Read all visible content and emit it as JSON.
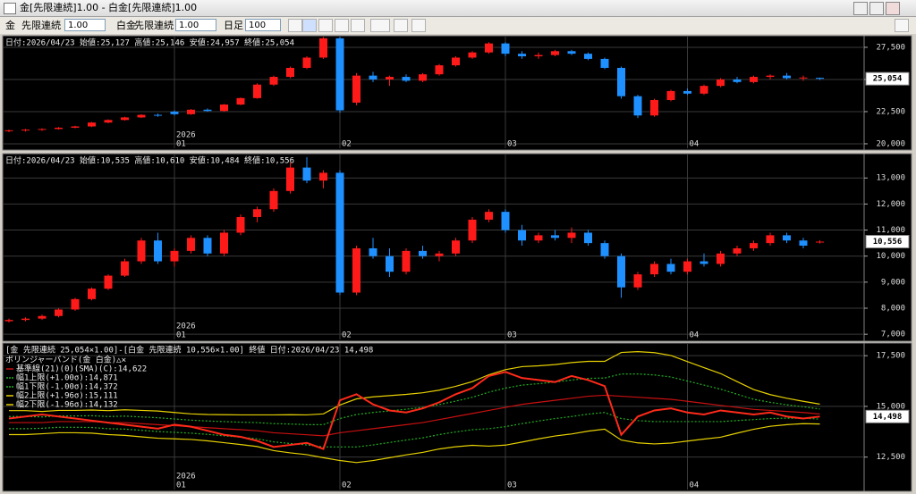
{
  "window": {
    "title": "金[先限連続]1.00 - 白金[先限連続]1.00"
  },
  "toolbar": {
    "symbol1": "金",
    "contract1": "先限連続",
    "mult1": "1.00",
    "symbol2": "白金",
    "contract2": "先限連続",
    "mult2": "1.00",
    "period": "日足",
    "bars": "100"
  },
  "chart_data": [
    {
      "type": "candlestick",
      "header": "日付:2026/04/23 始値:25,127 高値:25,146 安値:24,957 終値:25,054",
      "categories": [
        null,
        null,
        null,
        null,
        null,
        null,
        null,
        null,
        null,
        null,
        "01",
        null,
        null,
        null,
        null,
        null,
        null,
        null,
        null,
        null,
        "02",
        null,
        null,
        null,
        null,
        null,
        null,
        null,
        null,
        null,
        "03",
        null,
        null,
        null,
        null,
        null,
        null,
        null,
        null,
        null,
        null,
        "04",
        null,
        null,
        null,
        null,
        null,
        null,
        null,
        null
      ],
      "year_label": "2026",
      "ohlc": [
        [
          21000,
          21100,
          20900,
          21050
        ],
        [
          21050,
          21150,
          20950,
          21100
        ],
        [
          21100,
          21200,
          21000,
          21150
        ],
        [
          21150,
          21300,
          21100,
          21250
        ],
        [
          21250,
          21400,
          21200,
          21350
        ],
        [
          21350,
          21700,
          21300,
          21650
        ],
        [
          21650,
          21900,
          21600,
          21850
        ],
        [
          21850,
          22100,
          21800,
          22050
        ],
        [
          22050,
          22300,
          22000,
          22250
        ],
        [
          22250,
          22350,
          22100,
          22200
        ],
        [
          22500,
          22600,
          22200,
          22300
        ],
        [
          22300,
          22700,
          22250,
          22650
        ],
        [
          22650,
          22750,
          22500,
          22550
        ],
        [
          22550,
          23100,
          22500,
          23050
        ],
        [
          23050,
          23600,
          23000,
          23550
        ],
        [
          23550,
          24700,
          23500,
          24600
        ],
        [
          24600,
          25300,
          24500,
          25200
        ],
        [
          25200,
          26000,
          25100,
          25900
        ],
        [
          25900,
          26800,
          25800,
          26700
        ],
        [
          26700,
          28300,
          26600,
          28200
        ],
        [
          28200,
          28300,
          22400,
          22600
        ],
        [
          23200,
          25500,
          23000,
          25300
        ],
        [
          25300,
          25600,
          24800,
          25000
        ],
        [
          25000,
          25300,
          24500,
          25200
        ],
        [
          25200,
          25400,
          24800,
          24900
        ],
        [
          24900,
          25500,
          24800,
          25400
        ],
        [
          25400,
          26200,
          25300,
          26100
        ],
        [
          26100,
          26800,
          26000,
          26700
        ],
        [
          26700,
          27200,
          26600,
          27100
        ],
        [
          27100,
          27900,
          27000,
          27800
        ],
        [
          27800,
          27900,
          26800,
          27000
        ],
        [
          27000,
          27200,
          26600,
          26800
        ],
        [
          26800,
          27100,
          26600,
          26900
        ],
        [
          26900,
          27300,
          26800,
          27200
        ],
        [
          27200,
          27300,
          26900,
          27000
        ],
        [
          27000,
          27100,
          26500,
          26600
        ],
        [
          26600,
          26700,
          25800,
          25900
        ],
        [
          25900,
          26000,
          23500,
          23700
        ],
        [
          23700,
          23800,
          22000,
          22200
        ],
        [
          22200,
          23500,
          22100,
          23400
        ],
        [
          23400,
          24200,
          23300,
          24100
        ],
        [
          24100,
          24300,
          23800,
          23900
        ],
        [
          23900,
          24600,
          23800,
          24500
        ],
        [
          24500,
          25100,
          24400,
          25000
        ],
        [
          25000,
          25200,
          24700,
          24800
        ],
        [
          24800,
          25300,
          24700,
          25200
        ],
        [
          25200,
          25400,
          25000,
          25300
        ],
        [
          25300,
          25500,
          25000,
          25100
        ],
        [
          25100,
          25300,
          24900,
          25150
        ],
        [
          25127,
          25146,
          24957,
          25054
        ]
      ],
      "up_color": "#ff1a1a",
      "down_color": "#1e90ff",
      "ylim": [
        19650,
        28330
      ],
      "yticks": [
        {
          "value": 20000,
          "label": "20,000"
        },
        {
          "value": 22500,
          "label": "22,500"
        },
        {
          "value": 25000,
          "label": "25,000"
        },
        {
          "value": 27500,
          "label": "27,500"
        }
      ],
      "grid": true,
      "last_label": "25,054"
    },
    {
      "type": "candlestick",
      "header": "日付:2026/04/23 始値:10,535 高値:10,610 安値:10,484 終値:10,556",
      "categories": [
        null,
        null,
        null,
        null,
        null,
        null,
        null,
        null,
        null,
        null,
        "01",
        null,
        null,
        null,
        null,
        null,
        null,
        null,
        null,
        null,
        "02",
        null,
        null,
        null,
        null,
        null,
        null,
        null,
        null,
        null,
        "03",
        null,
        null,
        null,
        null,
        null,
        null,
        null,
        null,
        null,
        null,
        "04",
        null,
        null,
        null,
        null,
        null,
        null,
        null,
        null
      ],
      "year_label": "2026",
      "ohlc": [
        [
          7500,
          7600,
          7450,
          7550
        ],
        [
          7550,
          7650,
          7500,
          7600
        ],
        [
          7600,
          7750,
          7550,
          7700
        ],
        [
          7700,
          8000,
          7650,
          7950
        ],
        [
          7950,
          8400,
          7900,
          8350
        ],
        [
          8350,
          8800,
          8300,
          8750
        ],
        [
          8750,
          9300,
          8700,
          9250
        ],
        [
          9250,
          9900,
          9200,
          9800
        ],
        [
          9800,
          10700,
          9700,
          10600
        ],
        [
          10600,
          10900,
          9700,
          9800
        ],
        [
          9800,
          10300,
          9600,
          10200
        ],
        [
          10200,
          10800,
          10100,
          10700
        ],
        [
          10700,
          10800,
          10000,
          10100
        ],
        [
          10100,
          11000,
          10000,
          10900
        ],
        [
          10900,
          11600,
          10800,
          11500
        ],
        [
          11500,
          11900,
          11300,
          11800
        ],
        [
          11800,
          12600,
          11700,
          12500
        ],
        [
          12500,
          13600,
          12400,
          13400
        ],
        [
          13400,
          13800,
          12800,
          12900
        ],
        [
          12900,
          13300,
          12600,
          13200
        ],
        [
          13200,
          13300,
          8500,
          8600
        ],
        [
          8600,
          10400,
          8500,
          10300
        ],
        [
          10300,
          10700,
          9900,
          10000
        ],
        [
          10000,
          10300,
          9200,
          9400
        ],
        [
          9400,
          10300,
          9300,
          10200
        ],
        [
          10200,
          10400,
          9900,
          10000
        ],
        [
          10000,
          10200,
          9800,
          10100
        ],
        [
          10100,
          10700,
          10000,
          10600
        ],
        [
          10600,
          11500,
          10500,
          11400
        ],
        [
          11400,
          11800,
          11300,
          11700
        ],
        [
          11700,
          11800,
          10900,
          11000
        ],
        [
          11000,
          11200,
          10400,
          10600
        ],
        [
          10600,
          10900,
          10500,
          10800
        ],
        [
          10800,
          11000,
          10600,
          10700
        ],
        [
          10700,
          11100,
          10500,
          10900
        ],
        [
          10900,
          11000,
          10400,
          10500
        ],
        [
          10500,
          10600,
          9900,
          10000
        ],
        [
          10000,
          10100,
          8400,
          8800
        ],
        [
          8800,
          9400,
          8700,
          9300
        ],
        [
          9300,
          9800,
          9200,
          9700
        ],
        [
          9700,
          9900,
          9300,
          9400
        ],
        [
          9400,
          9900,
          9300,
          9800
        ],
        [
          9800,
          10100,
          9600,
          9700
        ],
        [
          9700,
          10200,
          9600,
          10100
        ],
        [
          10100,
          10400,
          10000,
          10300
        ],
        [
          10300,
          10600,
          10200,
          10500
        ],
        [
          10500,
          10900,
          10400,
          10800
        ],
        [
          10800,
          10900,
          10500,
          10600
        ],
        [
          10600,
          10700,
          10300,
          10400
        ],
        [
          10535,
          10610,
          10484,
          10556
        ]
      ],
      "up_color": "#ff1a1a",
      "down_color": "#1e90ff",
      "ylim": [
        6800,
        13900
      ],
      "yticks": [
        {
          "value": 7000,
          "label": "7,000"
        },
        {
          "value": 8000,
          "label": "8,000"
        },
        {
          "value": 9000,
          "label": "9,000"
        },
        {
          "value": 10000,
          "label": "10,000"
        },
        {
          "value": 11000,
          "label": "11,000"
        },
        {
          "value": 12000,
          "label": "12,000"
        },
        {
          "value": 13000,
          "label": "13,000"
        }
      ],
      "grid": true,
      "last_label": "10,556"
    },
    {
      "type": "line",
      "header": "[金 先限連続 25,054×1.00]-[白金 先限連続 10,556×1.00] 終値 日付:2026/04/23 14,498",
      "legend_title": "ボリンジャーバンド(金 白金)△✕",
      "categories": [
        null,
        null,
        null,
        null,
        null,
        null,
        null,
        null,
        null,
        null,
        "01",
        null,
        null,
        null,
        null,
        null,
        null,
        null,
        null,
        null,
        "02",
        null,
        null,
        null,
        null,
        null,
        null,
        null,
        null,
        null,
        "03",
        null,
        null,
        null,
        null,
        null,
        null,
        null,
        null,
        null,
        null,
        "04",
        null,
        null,
        null,
        null,
        null,
        null,
        null,
        null
      ],
      "year_label": "2026",
      "color": "#ff2a1a",
      "values": [
        14400,
        14500,
        14600,
        14500,
        14400,
        14300,
        14200,
        14100,
        14000,
        13900,
        14100,
        14000,
        13800,
        13600,
        13500,
        13300,
        13000,
        13100,
        13200,
        12900,
        15300,
        15600,
        15100,
        14800,
        14700,
        14900,
        15200,
        15600,
        15900,
        16500,
        16700,
        16400,
        16300,
        16200,
        16500,
        16300,
        16000,
        13600,
        14500,
        14800,
        14900,
        14700,
        14600,
        14800,
        14700,
        14600,
        14700,
        14500,
        14400,
        14498
      ],
      "series": [
        {
          "name": "基準線(21)(0)(SMA)(C):14,622",
          "color": "#c81010",
          "dash": false,
          "values": [
            14200,
            14200,
            14200,
            14250,
            14250,
            14250,
            14200,
            14200,
            14150,
            14100,
            14050,
            14000,
            13950,
            13900,
            13850,
            13800,
            13700,
            13650,
            13600,
            13550,
            13700,
            13800,
            13900,
            14000,
            14100,
            14200,
            14350,
            14500,
            14650,
            14800,
            14950,
            15100,
            15200,
            15300,
            15400,
            15500,
            15550,
            15500,
            15450,
            15400,
            15350,
            15250,
            15150,
            15050,
            14950,
            14850,
            14800,
            14750,
            14700,
            14622
          ]
        },
        {
          "name": "幅1上限(+1.00σ):14,871",
          "color": "#22b022",
          "dash": true,
          "values": [
            14500,
            14500,
            14480,
            14530,
            14530,
            14540,
            14500,
            14520,
            14480,
            14440,
            14380,
            14320,
            14280,
            14250,
            14220,
            14200,
            14150,
            14130,
            14100,
            14100,
            14400,
            14600,
            14700,
            14780,
            14860,
            14950,
            15090,
            15260,
            15450,
            15700,
            15900,
            16050,
            16120,
            16200,
            16300,
            16380,
            16400,
            16600,
            16600,
            16550,
            16450,
            16250,
            16050,
            15850,
            15600,
            15350,
            15200,
            15080,
            14980,
            14871
          ]
        },
        {
          "name": "幅1下限(-1.00σ):14,372",
          "color": "#22b022",
          "dash": true,
          "values": [
            13900,
            13900,
            13920,
            13970,
            13970,
            13960,
            13900,
            13880,
            13820,
            13760,
            13720,
            13680,
            13620,
            13550,
            13480,
            13400,
            13250,
            13170,
            13100,
            13000,
            13000,
            13000,
            13100,
            13220,
            13340,
            13450,
            13610,
            13740,
            13850,
            13900,
            14000,
            14150,
            14280,
            14400,
            14500,
            14620,
            14700,
            14400,
            14300,
            14250,
            14250,
            14250,
            14250,
            14250,
            14300,
            14350,
            14400,
            14420,
            14420,
            14372
          ]
        },
        {
          "name": "幅2上限(+1.96σ):15,111",
          "color": "#e6d000",
          "dash": false,
          "values": [
            14790,
            14790,
            14750,
            14800,
            14800,
            14820,
            14790,
            14830,
            14800,
            14770,
            14700,
            14630,
            14600,
            14590,
            14580,
            14580,
            14580,
            14590,
            14580,
            14630,
            15070,
            15370,
            15470,
            15530,
            15590,
            15670,
            15800,
            15990,
            16220,
            16560,
            16810,
            16960,
            17000,
            17060,
            17160,
            17220,
            17220,
            17660,
            17700,
            17650,
            17510,
            17210,
            16910,
            16620,
            16220,
            15830,
            15580,
            15400,
            15250,
            15111
          ]
        },
        {
          "name": "幅2下限(-1.96σ):14,132",
          "color": "#e6d000",
          "dash": false,
          "values": [
            13610,
            13610,
            13650,
            13700,
            13700,
            13680,
            13610,
            13570,
            13500,
            13430,
            13400,
            13370,
            13300,
            13210,
            13120,
            13020,
            12820,
            12710,
            12620,
            12470,
            12330,
            12230,
            12330,
            12470,
            12610,
            12730,
            12900,
            13010,
            13080,
            13040,
            13090,
            13240,
            13400,
            13540,
            13640,
            13780,
            13880,
            13340,
            13200,
            13150,
            13190,
            13290,
            13390,
            13480,
            13680,
            13870,
            14020,
            14100,
            14150,
            14132
          ]
        }
      ],
      "ylim": [
        10900,
        18080
      ],
      "yticks": [
        {
          "value": 12500,
          "label": "12,500"
        },
        {
          "value": 15000,
          "label": "15,000"
        },
        {
          "value": 17500,
          "label": "17,500"
        }
      ],
      "grid": true,
      "last_label": "14,498"
    }
  ]
}
